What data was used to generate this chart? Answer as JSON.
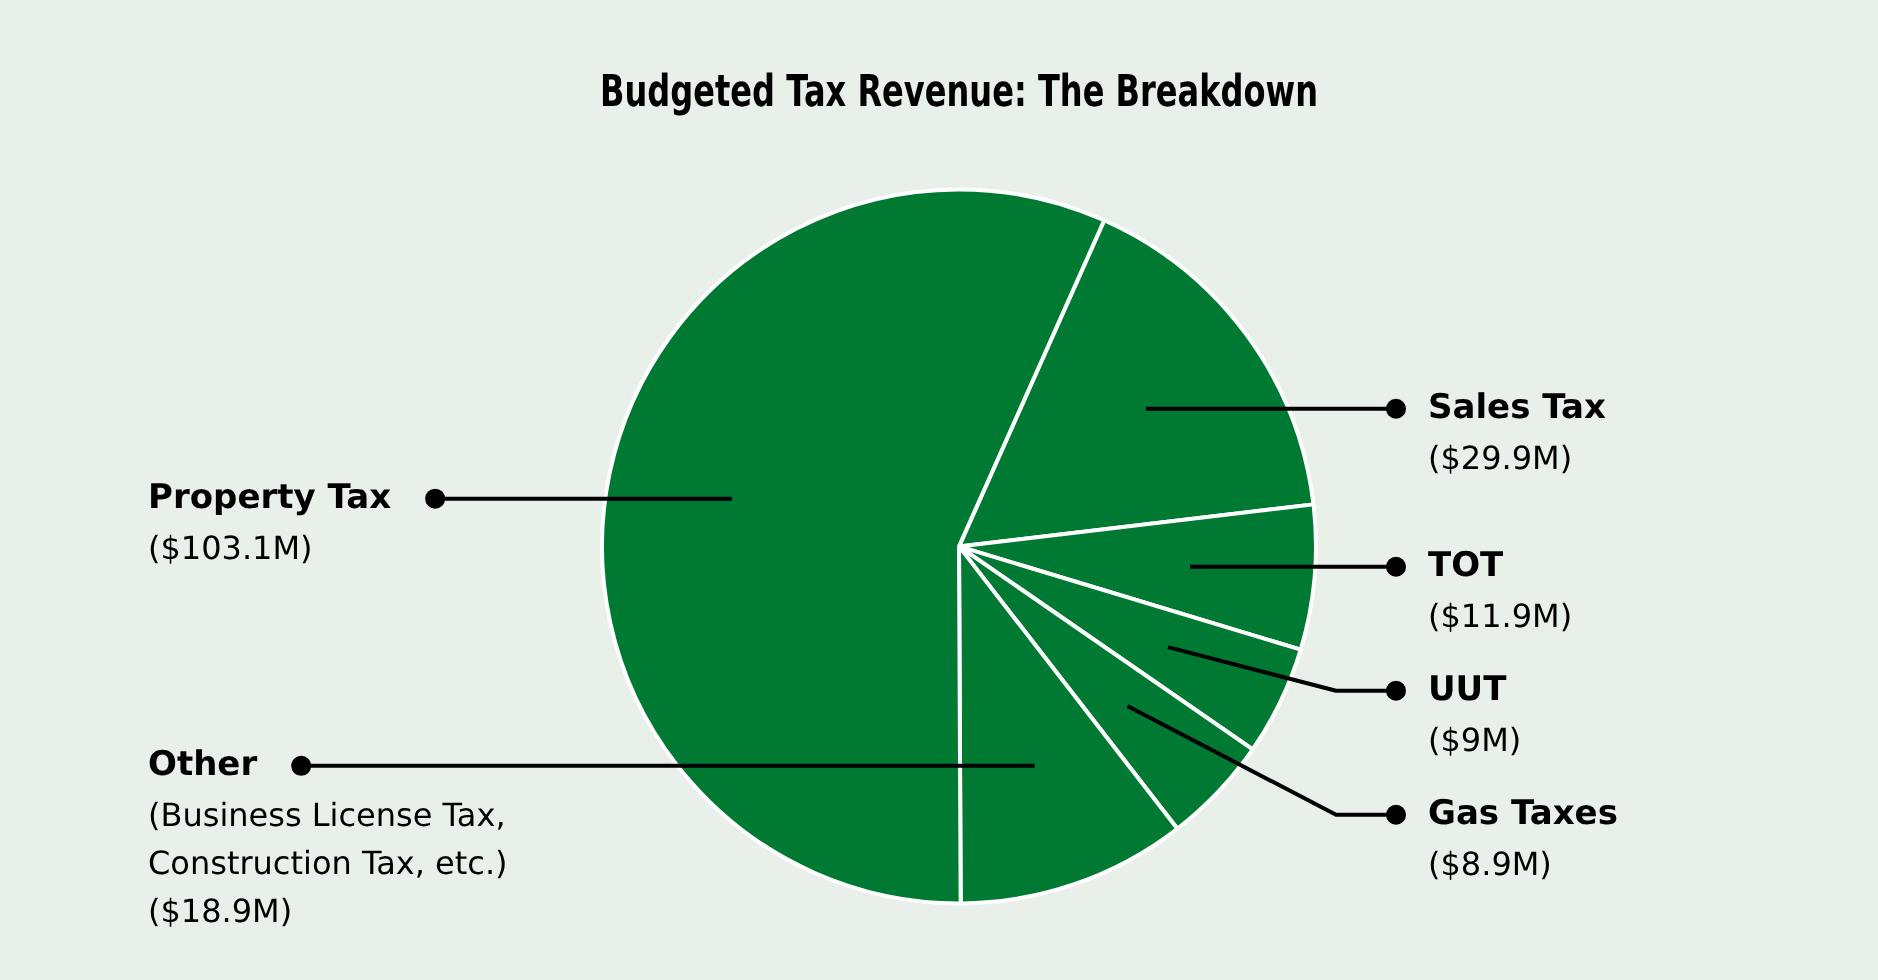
{
  "chart_data": {
    "type": "pie",
    "title": "Budgeted Tax Revenue: The Breakdown",
    "categories": [
      "Sales Tax",
      "TOT",
      "UUT",
      "Gas Taxes",
      "Other",
      "Property Tax"
    ],
    "values": [
      29.9,
      11.9,
      9,
      8.9,
      18.9,
      103.1
    ],
    "colors": [
      "#007a33",
      "#007a33",
      "#007a33",
      "#007a33",
      "#007a33",
      "#007a33"
    ],
    "value_labels": [
      "($29.9M)",
      "($11.9M)",
      "($9M)",
      "($8.9M)",
      "(Business License Tax,\nConstruction Tax, etc.)\n($18.9M)",
      "($103.1M)"
    ]
  }
}
